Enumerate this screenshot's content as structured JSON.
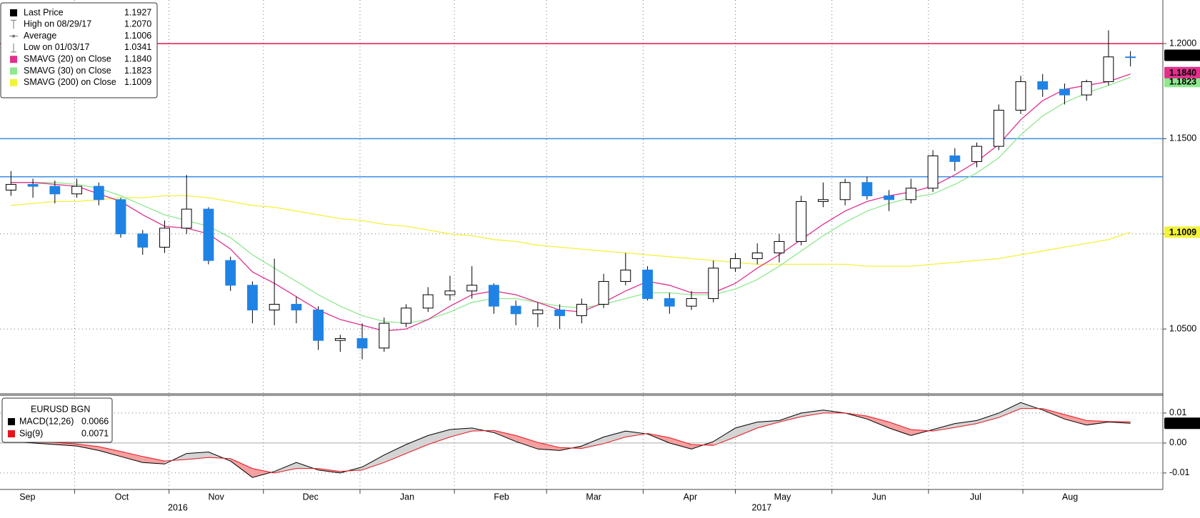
{
  "chart_data": [
    {
      "type": "candlestick",
      "stats": [
        {
          "name": "Last Price",
          "value": "1.1927",
          "marker": "square",
          "color": "#000000"
        },
        {
          "name": "High on 08/29/17",
          "value": "1.2070",
          "marker": "high",
          "color": "#777777"
        },
        {
          "name": "Average",
          "value": "1.1006",
          "marker": "average",
          "color": "#777777"
        },
        {
          "name": "Low on 01/03/17",
          "value": "1.0341",
          "marker": "low",
          "color": "#777777"
        }
      ],
      "candles": [
        [
          1.123,
          1.133,
          1.12,
          1.126
        ],
        [
          1.126,
          1.129,
          1.119,
          1.125
        ],
        [
          1.125,
          1.128,
          1.116,
          1.121
        ],
        [
          1.121,
          1.129,
          1.119,
          1.125
        ],
        [
          1.125,
          1.127,
          1.115,
          1.118
        ],
        [
          1.118,
          1.119,
          1.098,
          1.1
        ],
        [
          1.1,
          1.102,
          1.089,
          1.093
        ],
        [
          1.093,
          1.107,
          1.09,
          1.103
        ],
        [
          1.103,
          1.131,
          1.1,
          1.113
        ],
        [
          1.113,
          1.114,
          1.084,
          1.086
        ],
        [
          1.086,
          1.088,
          1.07,
          1.073
        ],
        [
          1.073,
          1.075,
          1.053,
          1.06
        ],
        [
          1.06,
          1.087,
          1.052,
          1.063
        ],
        [
          1.063,
          1.067,
          1.053,
          1.06
        ],
        [
          1.06,
          1.062,
          1.039,
          1.044
        ],
        [
          1.044,
          1.047,
          1.038,
          1.045
        ],
        [
          1.045,
          1.053,
          1.0341,
          1.04
        ],
        [
          1.04,
          1.056,
          1.038,
          1.053
        ],
        [
          1.053,
          1.063,
          1.051,
          1.061
        ],
        [
          1.061,
          1.072,
          1.059,
          1.068
        ],
        [
          1.068,
          1.078,
          1.065,
          1.07
        ],
        [
          1.07,
          1.083,
          1.066,
          1.073
        ],
        [
          1.073,
          1.074,
          1.058,
          1.062
        ],
        [
          1.062,
          1.065,
          1.052,
          1.058
        ],
        [
          1.058,
          1.064,
          1.051,
          1.06
        ],
        [
          1.06,
          1.063,
          1.05,
          1.057
        ],
        [
          1.057,
          1.066,
          1.053,
          1.063
        ],
        [
          1.063,
          1.079,
          1.061,
          1.075
        ],
        [
          1.075,
          1.09,
          1.073,
          1.081
        ],
        [
          1.081,
          1.083,
          1.065,
          1.066
        ],
        [
          1.066,
          1.069,
          1.058,
          1.062
        ],
        [
          1.062,
          1.07,
          1.06,
          1.066
        ],
        [
          1.066,
          1.086,
          1.064,
          1.082
        ],
        [
          1.082,
          1.09,
          1.08,
          1.087
        ],
        [
          1.087,
          1.095,
          1.084,
          1.09
        ],
        [
          1.09,
          1.1,
          1.085,
          1.096
        ],
        [
          1.096,
          1.12,
          1.094,
          1.117
        ],
        [
          1.117,
          1.127,
          1.114,
          1.118
        ],
        [
          1.118,
          1.129,
          1.115,
          1.127
        ],
        [
          1.127,
          1.13,
          1.118,
          1.12
        ],
        [
          1.12,
          1.123,
          1.112,
          1.118
        ],
        [
          1.118,
          1.129,
          1.116,
          1.124
        ],
        [
          1.124,
          1.144,
          1.122,
          1.141
        ],
        [
          1.141,
          1.145,
          1.133,
          1.138
        ],
        [
          1.138,
          1.148,
          1.135,
          1.146
        ],
        [
          1.146,
          1.168,
          1.144,
          1.165
        ],
        [
          1.165,
          1.183,
          1.163,
          1.18
        ],
        [
          1.18,
          1.184,
          1.172,
          1.176
        ],
        [
          1.176,
          1.179,
          1.168,
          1.173
        ],
        [
          1.173,
          1.181,
          1.17,
          1.18
        ],
        [
          1.18,
          1.207,
          1.178,
          1.193
        ],
        [
          1.193,
          1.196,
          1.188,
          1.1927
        ]
      ],
      "up_color": "#ffffff",
      "down_color": "#1f83e6",
      "series": [
        {
          "name": "SMAVG (20) on Close",
          "legend_value": "1.1840",
          "color": "#e0308c",
          "text_color": "#ffffff",
          "values": [
            1.127,
            1.127,
            1.126,
            1.125,
            1.121,
            1.117,
            1.11,
            1.104,
            1.103,
            1.1,
            1.092,
            1.08,
            1.074,
            1.067,
            1.06,
            1.055,
            1.052,
            1.049,
            1.05,
            1.055,
            1.062,
            1.068,
            1.07,
            1.068,
            1.064,
            1.06,
            1.059,
            1.064,
            1.07,
            1.075,
            1.073,
            1.069,
            1.069,
            1.074,
            1.082,
            1.089,
            1.097,
            1.105,
            1.112,
            1.117,
            1.12,
            1.122,
            1.125,
            1.131,
            1.138,
            1.147,
            1.16,
            1.17,
            1.176,
            1.178,
            1.18,
            1.184
          ]
        },
        {
          "name": "SMAVG (30) on Close",
          "legend_value": "1.1823",
          "color": "#8ee88e",
          "text_color": "#000000",
          "values": [
            1.127,
            1.127,
            1.127,
            1.126,
            1.124,
            1.12,
            1.115,
            1.11,
            1.107,
            1.104,
            1.098,
            1.089,
            1.082,
            1.075,
            1.068,
            1.062,
            1.057,
            1.054,
            1.053,
            1.055,
            1.059,
            1.064,
            1.066,
            1.066,
            1.064,
            1.062,
            1.061,
            1.063,
            1.066,
            1.069,
            1.069,
            1.068,
            1.068,
            1.071,
            1.076,
            1.083,
            1.091,
            1.099,
            1.106,
            1.112,
            1.116,
            1.119,
            1.121,
            1.126,
            1.132,
            1.14,
            1.152,
            1.162,
            1.169,
            1.174,
            1.178,
            1.1823
          ]
        },
        {
          "name": "SMAVG (200) on Close",
          "legend_value": "1.1009",
          "color": "#f2f23a",
          "text_color": "#000000",
          "values": [
            1.115,
            1.116,
            1.117,
            1.117,
            1.118,
            1.119,
            1.119,
            1.12,
            1.12,
            1.119,
            1.117,
            1.115,
            1.114,
            1.112,
            1.11,
            1.108,
            1.107,
            1.105,
            1.104,
            1.102,
            1.1,
            1.099,
            1.097,
            1.096,
            1.094,
            1.093,
            1.092,
            1.091,
            1.09,
            1.089,
            1.088,
            1.087,
            1.086,
            1.085,
            1.084,
            1.084,
            1.084,
            1.084,
            1.084,
            1.083,
            1.083,
            1.083,
            1.084,
            1.085,
            1.086,
            1.087,
            1.089,
            1.091,
            1.093,
            1.095,
            1.097,
            1.1009
          ]
        }
      ],
      "hlines": [
        {
          "value": 1.2,
          "color": "#e0174a"
        },
        {
          "value": 1.15,
          "color": "#3a8ee6"
        },
        {
          "value": 1.13,
          "color": "#3a8ee6"
        }
      ],
      "xlim": [
        0,
        52
      ],
      "ylim": [
        1.0163,
        1.2229
      ],
      "yticks": [
        {
          "value": 1.05,
          "label": "1.0500"
        },
        {
          "value": 1.1,
          "label": "1.1000"
        },
        {
          "value": 1.15,
          "label": "1.1500"
        },
        {
          "value": 1.2,
          "label": "1.2000"
        }
      ],
      "grid": true
    },
    {
      "type": "line",
      "title": "EURUSD BGN",
      "series": [
        {
          "name": "MACD(12,26)",
          "legend_value": "0.0066",
          "color": "#000000",
          "values": [
            0.0005,
            0.0,
            -0.0005,
            -0.001,
            -0.0025,
            -0.0045,
            -0.0065,
            -0.007,
            -0.0035,
            -0.003,
            -0.006,
            -0.0115,
            -0.0095,
            -0.0065,
            -0.009,
            -0.01,
            -0.008,
            -0.004,
            -0.0005,
            0.0025,
            0.0045,
            0.005,
            0.0035,
            0.0005,
            -0.002,
            -0.0025,
            -0.001,
            0.002,
            0.004,
            0.003,
            0.0,
            -0.002,
            0.0005,
            0.005,
            0.007,
            0.0075,
            0.01,
            0.011,
            0.01,
            0.008,
            0.005,
            0.0025,
            0.0045,
            0.0065,
            0.0075,
            0.01,
            0.0135,
            0.011,
            0.008,
            0.006,
            0.007,
            0.0066
          ]
        },
        {
          "name": "Sig(9)",
          "legend_value": "0.0071",
          "color": "#e8141c",
          "values": [
            0.0008,
            0.0005,
            0.0002,
            -0.0003,
            -0.0012,
            -0.0028,
            -0.0045,
            -0.006,
            -0.0055,
            -0.0048,
            -0.0052,
            -0.0085,
            -0.01,
            -0.0085,
            -0.0085,
            -0.0095,
            -0.009,
            -0.0065,
            -0.0035,
            -0.0005,
            0.002,
            0.004,
            0.0042,
            0.0025,
            0.0002,
            -0.0015,
            -0.0018,
            -0.0002,
            0.002,
            0.0032,
            0.0018,
            -0.0005,
            -0.0008,
            0.002,
            0.005,
            0.007,
            0.0088,
            0.01,
            0.01,
            0.009,
            0.007,
            0.0045,
            0.004,
            0.0052,
            0.0065,
            0.0085,
            0.0115,
            0.0115,
            0.0095,
            0.0075,
            0.0072,
            0.0071
          ]
        }
      ],
      "fill_above": "#d4d4d4",
      "fill_below": "#f4a0a0",
      "ylim": [
        -0.0155,
        0.0157
      ],
      "yticks": [
        0.01,
        {
          "value": 0,
          "label": "0.00"
        },
        -0.01
      ],
      "xticks": [
        {
          "value": -0.9,
          "label": "Sep"
        },
        {
          "value": 3.4,
          "label": "Oct"
        },
        {
          "value": 7.7,
          "label": "Nov"
        },
        {
          "value": 12.0,
          "label": "Dec"
        },
        {
          "value": 16.4,
          "label": "Jan"
        },
        {
          "value": 20.7,
          "label": "Feb"
        },
        {
          "value": 24.9,
          "label": "Mar"
        },
        {
          "value": 29.3,
          "label": "Apr"
        },
        {
          "value": 33.5,
          "label": "May"
        },
        {
          "value": 37.9,
          "label": "Jun"
        },
        {
          "value": 42.3,
          "label": "Jul"
        },
        {
          "value": 46.6,
          "label": "Aug"
        }
      ],
      "years": [
        {
          "value": 8.1,
          "label": "2016"
        },
        {
          "value": 34.7,
          "label": "2017"
        }
      ],
      "grid": true
    }
  ]
}
